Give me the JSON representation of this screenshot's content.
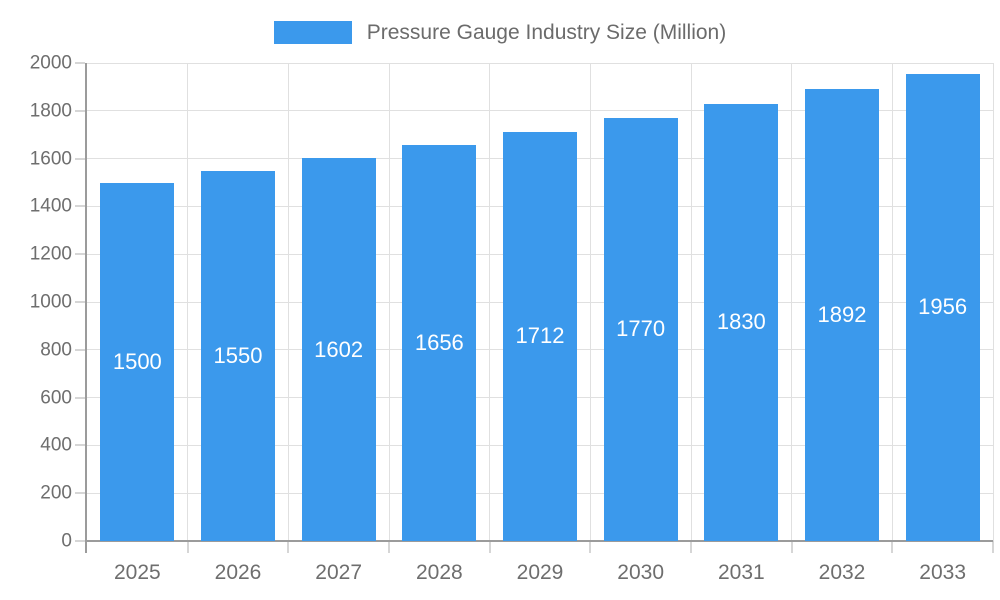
{
  "chart_data": {
    "type": "bar",
    "title": "Pressure Gauge Industry Size (Million)",
    "categories": [
      "2025",
      "2026",
      "2027",
      "2028",
      "2029",
      "2030",
      "2031",
      "2032",
      "2033"
    ],
    "values": [
      1500,
      1550,
      1602,
      1656,
      1712,
      1770,
      1830,
      1892,
      1956
    ],
    "value_labels": [
      "1500",
      "1550",
      "1602",
      "1656",
      "1712",
      "1770",
      "1830",
      "1892",
      "1956"
    ],
    "ylim": [
      0,
      2000
    ],
    "yticks": [
      0,
      200,
      400,
      600,
      800,
      1000,
      1200,
      1400,
      1600,
      1800,
      2000
    ],
    "ytick_labels": [
      "0",
      "200",
      "400",
      "600",
      "800",
      "1000",
      "1200",
      "1400",
      "1600",
      "1800",
      "2000"
    ],
    "xlabel": "",
    "ylabel": "",
    "grid": true,
    "legend_position": "top",
    "value_label_position": "inside-center"
  },
  "legend": {
    "label": "Pressure Gauge Industry Size (Million)"
  },
  "colors": {
    "bar": "#3B99EC",
    "axis_text": "#6E6E6E",
    "legend_text": "#6B6B6B",
    "grid_line": "#E0E0E0",
    "axis_line": "#9B9B9B",
    "tick": "#D6D6D6",
    "value_label": "#FFFFFF",
    "background": "#FFFFFF"
  }
}
